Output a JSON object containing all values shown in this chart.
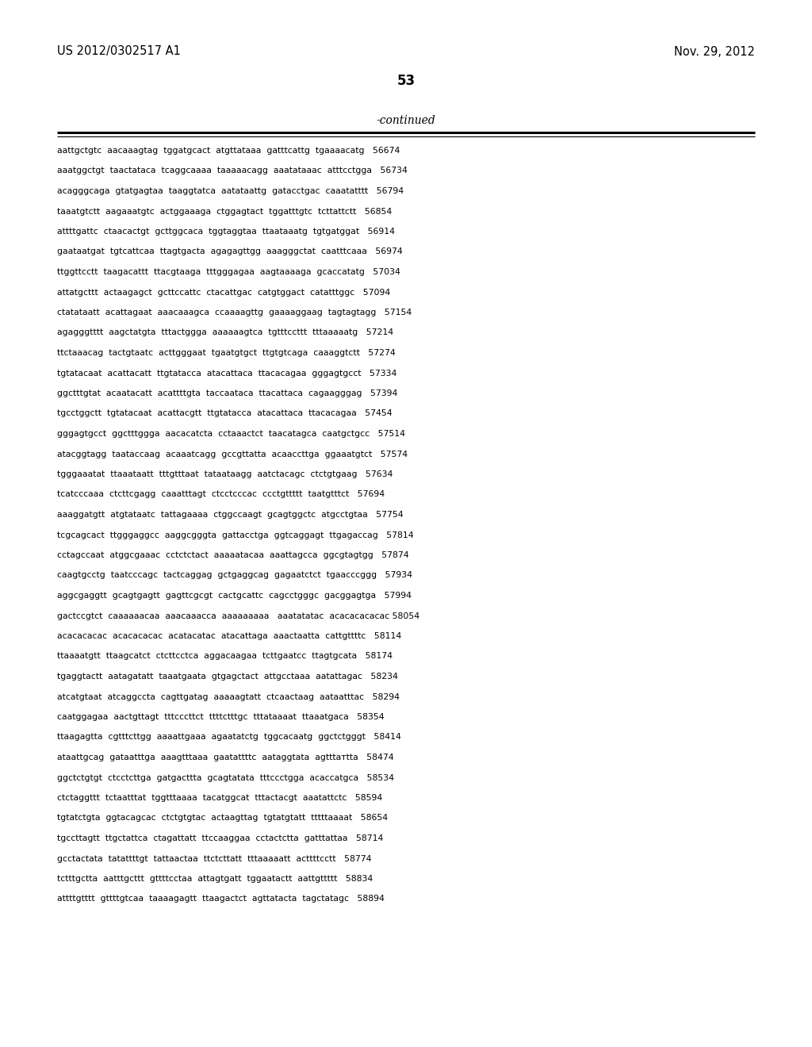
{
  "header_left": "US 2012/0302517 A1",
  "header_right": "Nov. 29, 2012",
  "page_number": "53",
  "continued_label": "-continued",
  "background_color": "#ffffff",
  "text_color": "#000000",
  "font_size_header": 10.5,
  "font_size_body": 7.8,
  "font_size_page": 12,
  "font_size_continued": 10,
  "lines": [
    "aattgctgtc  aacaaagtag  tggatgcact  atgttataaa  gatttcattg  tgaaaacatg   56674",
    "aaatggctgt  taactataca  tcaggcaaaa  taaaaacagg  aaatataaac  atttcctgga   56734",
    "acagggcaga  gtatgagtaa  taaggtatca  aatataattg  gatacctgac  caaatatttt   56794",
    "taaatgtctt  aagaaatgtc  actggaaaga  ctggagtact  tggatttgtc  tcttattctt   56854",
    "attttgattc  ctaacactgt  gcttggcaca  tggtaggtaa  ttaataaatg  tgtgatggat   56914",
    "gaataatgat  tgtcattcaa  ttagtgacta  agagagttgg  aaagggctat  caatttcaaa   56974",
    "ttggttcctt  taagacattt  ttacgtaaga  tttgggagaa  aagtaaaaga  gcaccatatg   57034",
    "attatgcttt  actaagagct  gcttccattc  ctacattgac  catgtggact  catatttggc   57094",
    "ctatataatt  acattagaat  aaacaaagca  ccaaaagttg  gaaaaggaag  tagtagtagg   57154",
    "agagggtttt  aagctatgta  tttactggga  aaaaaagtca  tgtttccttt  tttaaaaatg   57214",
    "ttctaaacag  tactgtaatc  acttgggaat  tgaatgtgct  ttgtgtcaga  caaaggtctt   57274",
    "tgtatacaat  acattacatt  ttgtatacca  atacattaca  ttacacagaa  gggagtgcct   57334",
    "ggctttgtat  acaatacatt  acattttgta  taccaataca  ttacattaca  cagaagggag   57394",
    "tgcctggctt  tgtatacaat  acattacgtt  ttgtatacca  atacattaca  ttacacagaa   57454",
    "gggagtgcct  ggctttggga  aacacatcta  cctaaactct  taacatagca  caatgctgcc   57514",
    "atacggtagg  taataccaag  acaaatcagg  gccgttatta  acaaccttga  ggaaatgtct   57574",
    "tgggaaatat  ttaaataatt  tttgtttaat  tataataagg  aatctacagc  ctctgtgaag   57634",
    "tcatcccaaa  ctcttcgagg  caaatttagt  ctcctcccac  ccctgttttt  taatgtttct   57694",
    "aaaggatgtt  atgtataatc  tattagaaaa  ctggccaagt  gcagtggctc  atgcctgtaa   57754",
    "tcgcagcact  ttgggaggcc  aaggcgggta  gattacctga  ggtcaggagt  ttgagaccag   57814",
    "cctagccaat  atggcgaaac  cctctctact  aaaaatacaa  aaattagcca  ggcgtagtgg   57874",
    "caagtgcctg  taatcccagc  tactcaggag  gctgaggcag  gagaatctct  tgaacccggg   57934",
    "aggcgaggtt  gcagtgagtt  gagttcgcgt  cactgcattc  cagcctgggc  gacggagtga   57994",
    "gactccgtct  caaaaaacaa  aaacaaacca  aaaaaaaaa   aaatatatac  acacacacacac 58054",
    "acacacacac  acacacacac  acatacatac  atacattaga  aaactaatta  cattgttttc   58114",
    "ttaaaatgtt  ttaagcatct  ctcttcctca  aggacaagaa  tcttgaatcc  ttagtgcata   58174",
    "tgaggtactt  aatagatatt  taaatgaata  gtgagctact  attgcctaaa  aatattagac   58234",
    "atcatgtaat  atcaggccta  cagttgatag  aaaaagtatt  ctcaactaag  aataatttac   58294",
    "caatggagaa  aactgttagt  tttcccttct  ttttctttgc  tttataaaat  ttaaatgaca   58354",
    "ttaagagtta  cgtttcttgg  aaaattgaaa  agaatatctg  tggcacaatg  ggctctgggt   58414",
    "ataattgcag  gataatttga  aaagtttaaa  gaatattttc  aataggtata  agtttатtta   58474",
    "ggctctgtgt  ctcctcttga  gatgacttta  gcagtatata  tttccctgga  acaccatgca   58534",
    "ctctaggttt  tctaatttat  tggtttaaaa  tacatggcat  tttactacgt  aaatattctc   58594",
    "tgtatctgta  ggtacagcac  ctctgtgtac  actaagttag  tgtatgtatt  tttttaaaat   58654",
    "tgccttagtt  ttgctattca  ctagattatt  ttccaaggaa  cctactctta  gatttattaa   58714",
    "gcctactata  tatattttgt  tattaactaa  ttctcttatt  tttaaaaatt  acttttcctt   58774",
    "tctttgctta  aatttgcttt  gttttcctaa  attagtgatt  tggaatactt  aattgttttt   58834",
    "attttgtttt  gttttgtcaa  taaaagagtt  ttaagactct  agttatacta  tagctatagc   58894"
  ]
}
